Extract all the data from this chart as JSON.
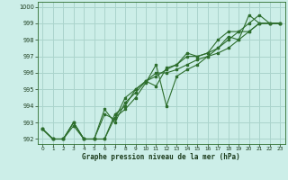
{
  "title": "Graphe pression niveau de la mer (hPa)",
  "bg_color": "#cceee8",
  "grid_color": "#aad4cc",
  "line_color": "#2d6e2d",
  "xlim": [
    -0.5,
    23.5
  ],
  "ylim": [
    991.7,
    1000.3
  ],
  "yticks": [
    992,
    993,
    994,
    995,
    996,
    997,
    998,
    999,
    1000
  ],
  "xticks": [
    0,
    1,
    2,
    3,
    4,
    5,
    6,
    7,
    8,
    9,
    10,
    11,
    12,
    13,
    14,
    15,
    16,
    17,
    18,
    19,
    20,
    21,
    22,
    23
  ],
  "series": [
    [
      992.6,
      992.0,
      992.0,
      993.0,
      992.0,
      992.0,
      993.8,
      993.0,
      994.2,
      994.8,
      995.5,
      995.2,
      996.3,
      996.5,
      997.0,
      997.0,
      997.2,
      997.5,
      998.2,
      998.0,
      999.5,
      999.0,
      999.0,
      999.0
    ],
    [
      992.6,
      992.0,
      992.0,
      992.8,
      992.0,
      992.0,
      992.0,
      993.3,
      993.8,
      994.5,
      995.4,
      996.5,
      994.0,
      995.8,
      996.2,
      996.5,
      997.0,
      997.2,
      997.5,
      998.0,
      998.5,
      999.0,
      999.0,
      999.0
    ],
    [
      992.6,
      992.0,
      992.0,
      993.0,
      992.0,
      992.0,
      992.0,
      993.5,
      994.0,
      995.0,
      995.5,
      996.0,
      996.0,
      996.2,
      996.5,
      996.8,
      997.0,
      997.5,
      998.0,
      998.5,
      998.5,
      999.0,
      999.0,
      999.0
    ],
    [
      992.6,
      992.0,
      992.0,
      993.0,
      992.0,
      992.0,
      993.5,
      993.2,
      994.5,
      995.0,
      995.5,
      995.8,
      996.2,
      996.5,
      997.2,
      997.0,
      997.2,
      998.0,
      998.5,
      998.5,
      999.0,
      999.5,
      999.0,
      999.0
    ]
  ]
}
